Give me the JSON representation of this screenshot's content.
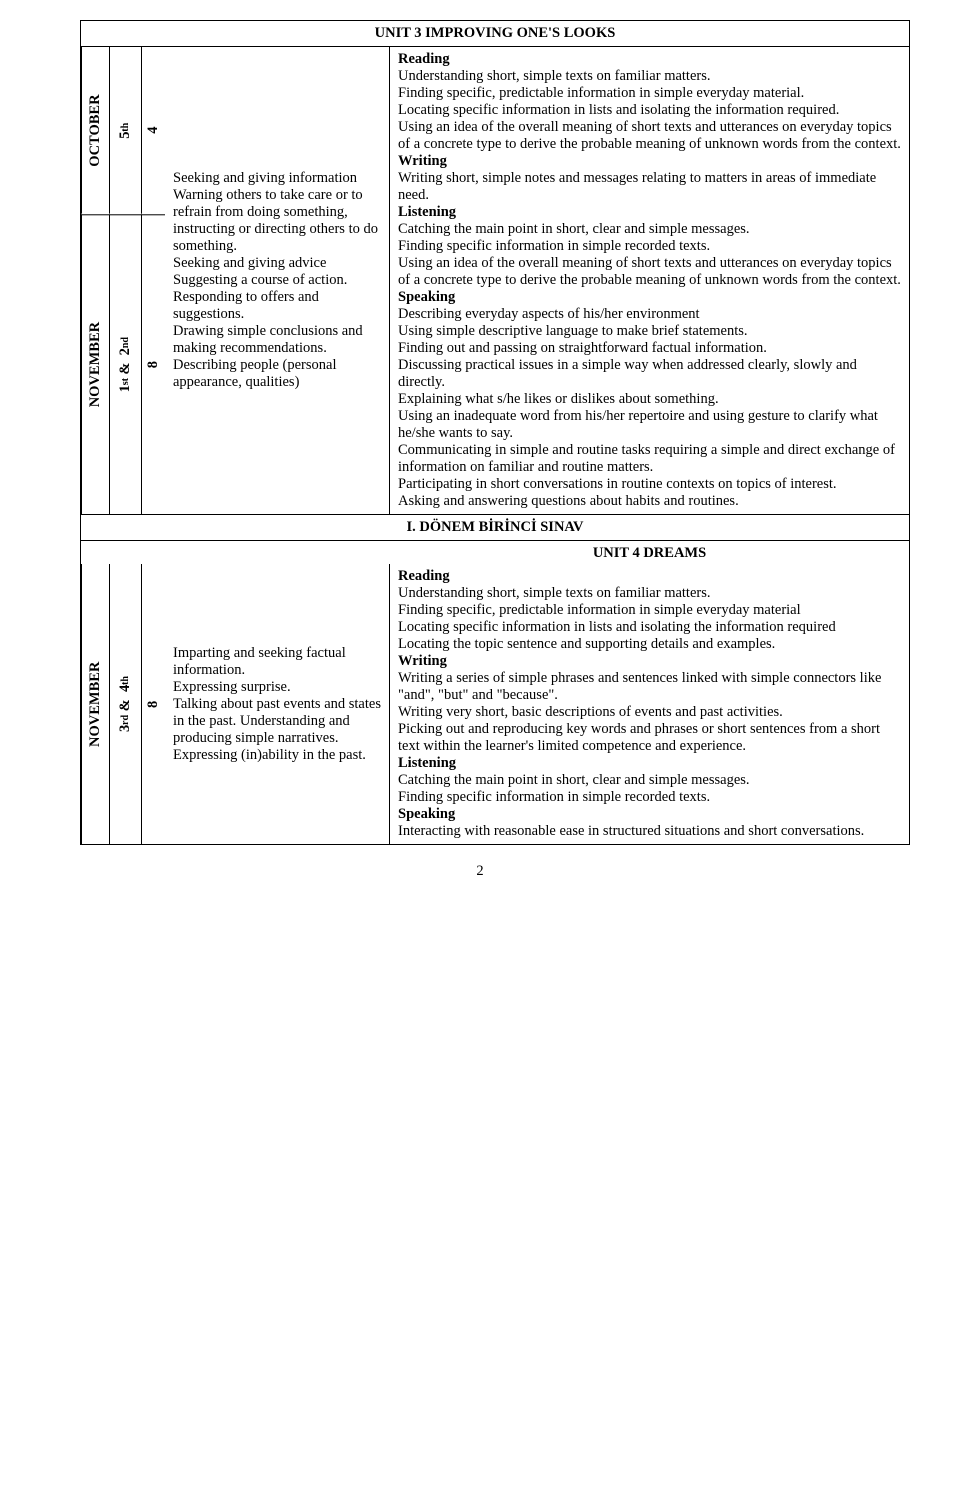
{
  "unit3": {
    "title": "UNIT 3 IMPROVING ONE'S LOOKS",
    "months": [
      "OCTOBER",
      "NOVEMBER"
    ],
    "weeks_html": [
      "5<sup>th</sup>",
      "1<sup>st</sup> &nbsp;&&nbsp; 2<sup>nd</sup>"
    ],
    "hours": [
      "4",
      "8"
    ],
    "functions": "Seeking and giving information Warning others to take care or to refrain from doing something, instructing or directing others to do something.\nSeeking and giving advice Suggesting a course of action. Responding to offers and suggestions.\nDrawing simple conclusions and making recommendations. Describing people (personal appearance, qualities)",
    "skills": {
      "reading_h": "Reading",
      "reading": "Understanding short, simple texts on familiar matters.\nFinding specific, predictable information in simple everyday material.\nLocating specific information in lists and isolating the information required.\nUsing an idea of the overall meaning of short texts and utterances on everyday topics of a concrete type to derive the probable meaning of unknown words from the context.",
      "writing_h": "Writing",
      "writing": "Writing short, simple notes and messages relating to matters in areas of immediate need.",
      "listening_h": "Listening",
      "listening": "Catching the main point in short, clear and simple messages.\nFinding specific information in simple recorded texts.\nUsing an idea of the overall meaning of short texts and utterances on everyday topics of a concrete type to derive the probable meaning of unknown words from the context.",
      "speaking_h": "Speaking",
      "speaking": "Describing everyday aspects of his/her environment\nUsing simple descriptive language to make brief statements.\nFinding out and passing on straightforward factual information.\nDiscussing practical issues in a simple way when addressed clearly, slowly and directly.\nExplaining what s/he likes or dislikes about something.\nUsing an inadequate word from his/her repertoire and using gesture to clarify what he/she wants to say.\nCommunicating in simple and routine tasks requiring a simple and direct exchange of information on familiar and routine matters.\nParticipating in short conversations in routine contexts on topics of interest.\nAsking and answering questions about habits and routines."
    }
  },
  "exam": "I. DÖNEM BİRİNCİ SINAV",
  "unit4": {
    "title": "UNIT 4 DREAMS",
    "month": "NOVEMBER",
    "week_html": "3<sup>rd</sup> &nbsp;&&nbsp; 4<sup>th</sup>",
    "hours": "8",
    "functions": "Imparting and seeking factual information.\nExpressing surprise.\nTalking about past events and states in the past. Understanding and producing simple narratives.\nExpressing (in)ability in the past.",
    "skills": {
      "reading_h": "Reading",
      "reading": "Understanding short, simple texts on familiar matters.\nFinding specific, predictable information in simple everyday material\nLocating specific information in lists and isolating the information required\nLocating the topic sentence and supporting details and examples.",
      "writing_h": "Writing",
      "writing": "Writing a series of simple phrases and sentences linked with simple connectors like \"and\", \"but\" and \"because\".\nWriting very short, basic descriptions of events and past activities.\nPicking out and reproducing key words and phrases or short sentences from a short text within the learner's limited competence and experience.",
      "listening_h": "Listening",
      "listening": "Catching the main point in short, clear and simple messages.\nFinding specific information in simple recorded texts.",
      "speaking_h": "Speaking",
      "speaking": "Interacting with reasonable ease in structured situations and short conversations."
    }
  },
  "page_number": "2"
}
